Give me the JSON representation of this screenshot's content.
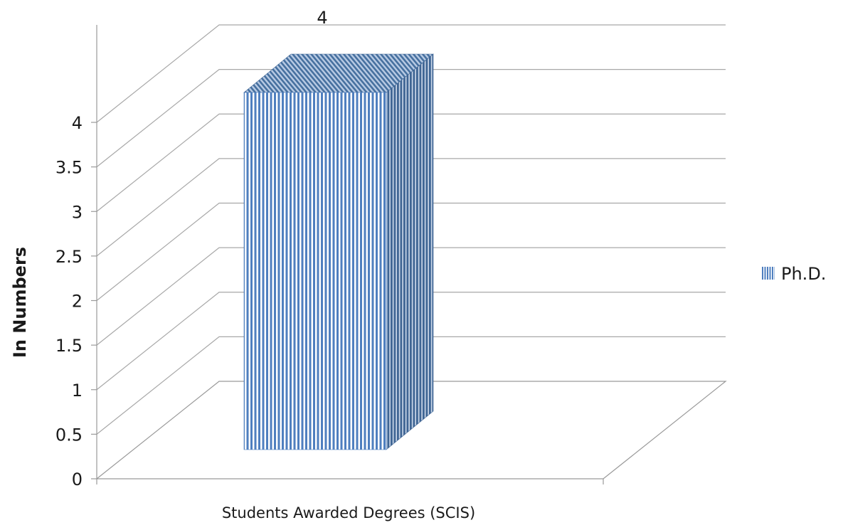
{
  "chart_data": {
    "type": "bar",
    "style": "3d-clustered-column",
    "categories": [
      "Students Awarded Degrees (SCIS)"
    ],
    "series": [
      {
        "name": "Ph.D.",
        "values": [
          4
        ],
        "color": "#4f7fbf",
        "pattern": "vertical-stripes"
      }
    ],
    "ylabel": "In Numbers",
    "xlabel": "",
    "ylim": [
      0,
      4
    ],
    "yticks": [
      "0",
      "0.5",
      "1",
      "1.5",
      "2",
      "2.5",
      "3",
      "3.5",
      "4"
    ],
    "data_labels": [
      "4"
    ],
    "grid": true,
    "legend": "right"
  }
}
